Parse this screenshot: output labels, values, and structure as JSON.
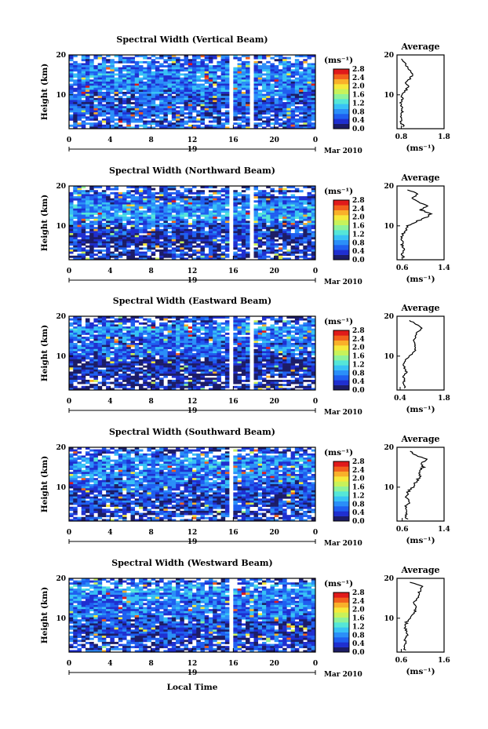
{
  "figure": {
    "xlabel": "Local Time",
    "date_label": "Mar 2010",
    "date_day_label": "19",
    "colorbar_unit": "(ms⁻¹)",
    "colorbar_ticks": [
      "0.0",
      "0.4",
      "0.8",
      "1.2",
      "1.6",
      "2.0",
      "2.4",
      "2.8"
    ]
  },
  "colormap": [
    "#1c1c66",
    "#1f2fd0",
    "#1f5ff0",
    "#2b8ff8",
    "#38c2f5",
    "#55e6d8",
    "#8ef29a",
    "#c8f25a",
    "#f6e93a",
    "#f9b02a",
    "#f2601c",
    "#e01a1a"
  ],
  "chart_data": [
    {
      "type": "heatmap",
      "title": "Spectral Width (Vertical Beam)",
      "ylabel": "Height (km)",
      "xlim": [
        0,
        24
      ],
      "ylim": [
        1.5,
        20
      ],
      "xticks": [
        "0",
        "4",
        "8",
        "12",
        "16",
        "20",
        "0"
      ],
      "yticks": [
        "10",
        "20"
      ],
      "clim": [
        0,
        2.8
      ],
      "gaps_h": [
        [
          5.5,
          5.7
        ],
        [
          15.8,
          16.0
        ],
        [
          17.8,
          18.1
        ]
      ],
      "profile": {
        "title": "Average",
        "xlabel": "(ms⁻¹)",
        "xticks": [
          "0.8",
          "1.8"
        ],
        "xlim": [
          0.7,
          1.8
        ],
        "height_km": [
          2,
          3,
          4,
          5,
          6,
          7,
          8,
          9,
          10,
          11,
          12,
          13,
          14,
          15,
          16,
          17,
          18,
          19
        ],
        "width_ms": [
          0.85,
          0.8,
          0.78,
          0.8,
          0.82,
          0.8,
          0.78,
          0.82,
          0.8,
          0.9,
          0.95,
          0.92,
          1.0,
          1.05,
          1.0,
          0.95,
          0.88,
          0.8
        ]
      }
    },
    {
      "type": "heatmap",
      "title": "Spectral Width (Northward Beam)",
      "ylabel": "Height (km)",
      "xlim": [
        0,
        24
      ],
      "ylim": [
        1.5,
        20
      ],
      "xticks": [
        "0",
        "4",
        "8",
        "12",
        "16",
        "20",
        "0"
      ],
      "yticks": [
        "10",
        "20"
      ],
      "clim": [
        0,
        2.8
      ],
      "gaps_h": [
        [
          5.5,
          5.7
        ],
        [
          15.8,
          16.0
        ],
        [
          17.8,
          18.1
        ]
      ],
      "profile": {
        "title": "Average",
        "xlabel": "(ms⁻¹)",
        "xticks": [
          "0.6",
          "1.4"
        ],
        "xlim": [
          0.5,
          1.4
        ],
        "height_km": [
          2,
          3,
          4,
          5,
          6,
          7,
          8,
          9,
          10,
          11,
          12,
          13,
          14,
          15,
          16,
          17,
          18,
          19
        ],
        "width_ms": [
          0.62,
          0.6,
          0.64,
          0.6,
          0.62,
          0.6,
          0.62,
          0.66,
          0.7,
          0.85,
          1.05,
          1.15,
          0.95,
          1.1,
          0.9,
          0.8,
          0.9,
          0.7
        ]
      }
    },
    {
      "type": "heatmap",
      "title": "Spectral Width (Eastward Beam)",
      "ylabel": "Height (km)",
      "xlim": [
        0,
        24
      ],
      "ylim": [
        1.5,
        20
      ],
      "xticks": [
        "0",
        "4",
        "8",
        "12",
        "16",
        "20",
        "0"
      ],
      "yticks": [
        "10",
        "20"
      ],
      "clim": [
        0,
        2.8
      ],
      "gaps_h": [
        [
          5.5,
          5.7
        ],
        [
          15.8,
          16.0
        ],
        [
          17.8,
          18.1
        ]
      ],
      "profile": {
        "title": "Average",
        "xlabel": "(ms⁻¹)",
        "xticks": [
          "0.4",
          "1.8"
        ],
        "xlim": [
          0.3,
          1.8
        ],
        "height_km": [
          2,
          3,
          4,
          5,
          6,
          7,
          8,
          9,
          10,
          11,
          12,
          13,
          14,
          15,
          16,
          17,
          18,
          19
        ],
        "width_ms": [
          0.55,
          0.5,
          0.55,
          0.5,
          0.6,
          0.55,
          0.5,
          0.55,
          0.7,
          0.85,
          0.9,
          0.88,
          0.85,
          0.9,
          0.95,
          1.1,
          0.9,
          0.7
        ]
      }
    },
    {
      "type": "heatmap",
      "title": "Spectral Width (Southward Beam)",
      "ylabel": "Height (km)",
      "xlim": [
        0,
        24
      ],
      "ylim": [
        1.5,
        20
      ],
      "xticks": [
        "0",
        "4",
        "8",
        "12",
        "16",
        "20",
        "0"
      ],
      "yticks": [
        "10",
        "20"
      ],
      "clim": [
        0,
        2.8
      ],
      "gaps_h": [
        [
          5.5,
          5.7
        ],
        [
          15.8,
          16.0
        ]
      ],
      "profile": {
        "title": "Average",
        "xlabel": "(ms⁻¹)",
        "xticks": [
          "0.6",
          "1.4"
        ],
        "xlim": [
          0.5,
          1.4
        ],
        "height_km": [
          2,
          3,
          4,
          5,
          6,
          7,
          8,
          9,
          10,
          11,
          12,
          13,
          14,
          15,
          16,
          17,
          18,
          19
        ],
        "width_ms": [
          0.7,
          0.65,
          0.7,
          0.66,
          0.72,
          0.7,
          0.68,
          0.72,
          0.8,
          0.85,
          0.9,
          0.95,
          0.92,
          1.0,
          0.98,
          1.05,
          0.85,
          0.75
        ]
      }
    },
    {
      "type": "heatmap",
      "title": "Spectral Width (Westward Beam)",
      "ylabel": "Height (km)",
      "xlim": [
        0,
        24
      ],
      "ylim": [
        1.5,
        20
      ],
      "xticks": [
        "0",
        "4",
        "8",
        "12",
        "16",
        "20",
        "0"
      ],
      "yticks": [
        "10",
        "20"
      ],
      "clim": [
        0,
        2.8
      ],
      "gaps_h": [
        [
          5.5,
          5.7
        ],
        [
          15.8,
          16.0
        ]
      ],
      "profile": {
        "title": "Average",
        "xlabel": "(ms⁻¹)",
        "xticks": [
          "0.6",
          "1.6"
        ],
        "xlim": [
          0.5,
          1.6
        ],
        "height_km": [
          2,
          3,
          4,
          5,
          6,
          7,
          8,
          9,
          10,
          11,
          12,
          13,
          14,
          15,
          16,
          17,
          18,
          19
        ],
        "width_ms": [
          0.7,
          0.65,
          0.7,
          0.68,
          0.75,
          0.7,
          0.7,
          0.72,
          0.8,
          0.9,
          0.92,
          0.95,
          0.9,
          0.98,
          1.0,
          1.05,
          1.1,
          0.8
        ]
      }
    }
  ]
}
